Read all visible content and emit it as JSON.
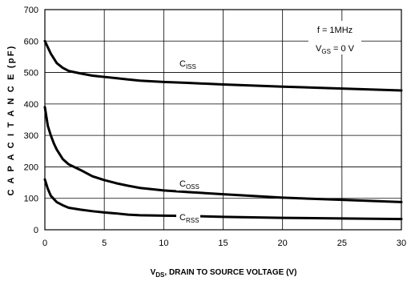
{
  "chart_data": {
    "type": "line",
    "xlabel_main": "V",
    "xlabel_sub": "DS",
    "xlabel_rest": ", DRAIN TO SOURCE VOLTAGE (V)",
    "ylabel": "C A P A C I T A N C E  (pF)",
    "xlim": [
      0,
      30
    ],
    "ylim": [
      0,
      700
    ],
    "xticks": [
      0,
      5,
      10,
      15,
      20,
      25,
      30
    ],
    "yticks": [
      0,
      100,
      200,
      300,
      400,
      500,
      600,
      700
    ],
    "grid": true,
    "conditions": {
      "freq": "f = 1MHz",
      "vgs_main": "V",
      "vgs_sub": "GS",
      "vgs_rest": " = 0 V"
    },
    "series": [
      {
        "name": "Ciss",
        "label_main": "C",
        "label_sub": "ISS",
        "x": [
          0,
          0.5,
          1,
          1.5,
          2,
          3,
          4,
          5,
          6,
          7,
          8,
          10,
          12,
          15,
          20,
          25,
          30
        ],
        "y": [
          600,
          560,
          530,
          515,
          505,
          497,
          490,
          486,
          482,
          478,
          474,
          470,
          467,
          462,
          455,
          449,
          443
        ]
      },
      {
        "name": "Coss",
        "label_main": "C",
        "label_sub": "OSS",
        "x": [
          0,
          0.25,
          0.5,
          0.75,
          1,
          1.5,
          2,
          3,
          4,
          5,
          6,
          7,
          8,
          10,
          12,
          15,
          20,
          25,
          30
        ],
        "y": [
          390,
          330,
          300,
          275,
          255,
          225,
          208,
          190,
          170,
          158,
          148,
          140,
          133,
          125,
          120,
          113,
          102,
          95,
          88
        ]
      },
      {
        "name": "Crss",
        "label_main": "C",
        "label_sub": "RSS",
        "x": [
          0,
          0.25,
          0.5,
          1,
          1.5,
          2,
          3,
          4,
          5,
          6,
          7,
          8,
          10,
          12,
          15,
          20,
          25,
          30
        ],
        "y": [
          160,
          130,
          108,
          88,
          78,
          70,
          64,
          59,
          55,
          52,
          48,
          46,
          45,
          44,
          41,
          38,
          36,
          34
        ]
      }
    ]
  }
}
